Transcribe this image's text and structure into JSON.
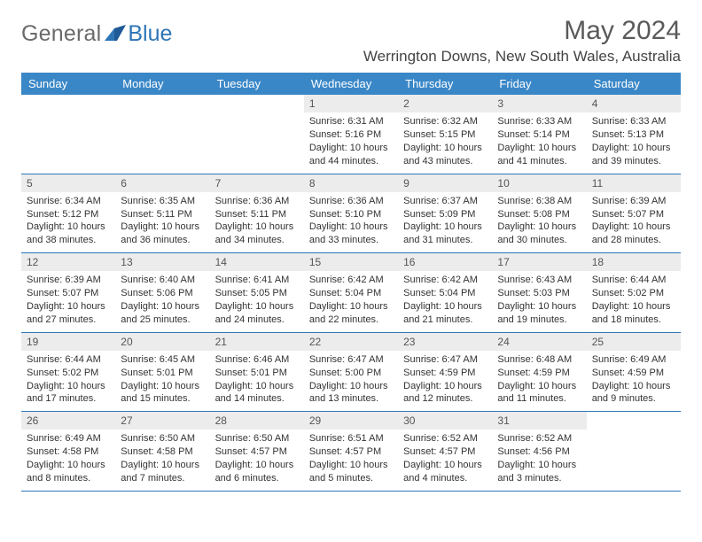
{
  "brand": {
    "text1": "General",
    "text2": "Blue"
  },
  "title": "May 2024",
  "location": "Werrington Downs, New South Wales, Australia",
  "colors": {
    "header_bg": "#3a87c7",
    "rule": "#2e75b6",
    "daynum_bg": "#ececec",
    "logo_gray": "#6a6a6a",
    "logo_blue": "#2e75b6"
  },
  "dow": [
    "Sunday",
    "Monday",
    "Tuesday",
    "Wednesday",
    "Thursday",
    "Friday",
    "Saturday"
  ],
  "weeks": [
    [
      {
        "n": "",
        "sr": "",
        "ss": "",
        "dl": ""
      },
      {
        "n": "",
        "sr": "",
        "ss": "",
        "dl": ""
      },
      {
        "n": "",
        "sr": "",
        "ss": "",
        "dl": ""
      },
      {
        "n": "1",
        "sr": "Sunrise: 6:31 AM",
        "ss": "Sunset: 5:16 PM",
        "dl": "Daylight: 10 hours and 44 minutes."
      },
      {
        "n": "2",
        "sr": "Sunrise: 6:32 AM",
        "ss": "Sunset: 5:15 PM",
        "dl": "Daylight: 10 hours and 43 minutes."
      },
      {
        "n": "3",
        "sr": "Sunrise: 6:33 AM",
        "ss": "Sunset: 5:14 PM",
        "dl": "Daylight: 10 hours and 41 minutes."
      },
      {
        "n": "4",
        "sr": "Sunrise: 6:33 AM",
        "ss": "Sunset: 5:13 PM",
        "dl": "Daylight: 10 hours and 39 minutes."
      }
    ],
    [
      {
        "n": "5",
        "sr": "Sunrise: 6:34 AM",
        "ss": "Sunset: 5:12 PM",
        "dl": "Daylight: 10 hours and 38 minutes."
      },
      {
        "n": "6",
        "sr": "Sunrise: 6:35 AM",
        "ss": "Sunset: 5:11 PM",
        "dl": "Daylight: 10 hours and 36 minutes."
      },
      {
        "n": "7",
        "sr": "Sunrise: 6:36 AM",
        "ss": "Sunset: 5:11 PM",
        "dl": "Daylight: 10 hours and 34 minutes."
      },
      {
        "n": "8",
        "sr": "Sunrise: 6:36 AM",
        "ss": "Sunset: 5:10 PM",
        "dl": "Daylight: 10 hours and 33 minutes."
      },
      {
        "n": "9",
        "sr": "Sunrise: 6:37 AM",
        "ss": "Sunset: 5:09 PM",
        "dl": "Daylight: 10 hours and 31 minutes."
      },
      {
        "n": "10",
        "sr": "Sunrise: 6:38 AM",
        "ss": "Sunset: 5:08 PM",
        "dl": "Daylight: 10 hours and 30 minutes."
      },
      {
        "n": "11",
        "sr": "Sunrise: 6:39 AM",
        "ss": "Sunset: 5:07 PM",
        "dl": "Daylight: 10 hours and 28 minutes."
      }
    ],
    [
      {
        "n": "12",
        "sr": "Sunrise: 6:39 AM",
        "ss": "Sunset: 5:07 PM",
        "dl": "Daylight: 10 hours and 27 minutes."
      },
      {
        "n": "13",
        "sr": "Sunrise: 6:40 AM",
        "ss": "Sunset: 5:06 PM",
        "dl": "Daylight: 10 hours and 25 minutes."
      },
      {
        "n": "14",
        "sr": "Sunrise: 6:41 AM",
        "ss": "Sunset: 5:05 PM",
        "dl": "Daylight: 10 hours and 24 minutes."
      },
      {
        "n": "15",
        "sr": "Sunrise: 6:42 AM",
        "ss": "Sunset: 5:04 PM",
        "dl": "Daylight: 10 hours and 22 minutes."
      },
      {
        "n": "16",
        "sr": "Sunrise: 6:42 AM",
        "ss": "Sunset: 5:04 PM",
        "dl": "Daylight: 10 hours and 21 minutes."
      },
      {
        "n": "17",
        "sr": "Sunrise: 6:43 AM",
        "ss": "Sunset: 5:03 PM",
        "dl": "Daylight: 10 hours and 19 minutes."
      },
      {
        "n": "18",
        "sr": "Sunrise: 6:44 AM",
        "ss": "Sunset: 5:02 PM",
        "dl": "Daylight: 10 hours and 18 minutes."
      }
    ],
    [
      {
        "n": "19",
        "sr": "Sunrise: 6:44 AM",
        "ss": "Sunset: 5:02 PM",
        "dl": "Daylight: 10 hours and 17 minutes."
      },
      {
        "n": "20",
        "sr": "Sunrise: 6:45 AM",
        "ss": "Sunset: 5:01 PM",
        "dl": "Daylight: 10 hours and 15 minutes."
      },
      {
        "n": "21",
        "sr": "Sunrise: 6:46 AM",
        "ss": "Sunset: 5:01 PM",
        "dl": "Daylight: 10 hours and 14 minutes."
      },
      {
        "n": "22",
        "sr": "Sunrise: 6:47 AM",
        "ss": "Sunset: 5:00 PM",
        "dl": "Daylight: 10 hours and 13 minutes."
      },
      {
        "n": "23",
        "sr": "Sunrise: 6:47 AM",
        "ss": "Sunset: 4:59 PM",
        "dl": "Daylight: 10 hours and 12 minutes."
      },
      {
        "n": "24",
        "sr": "Sunrise: 6:48 AM",
        "ss": "Sunset: 4:59 PM",
        "dl": "Daylight: 10 hours and 11 minutes."
      },
      {
        "n": "25",
        "sr": "Sunrise: 6:49 AM",
        "ss": "Sunset: 4:59 PM",
        "dl": "Daylight: 10 hours and 9 minutes."
      }
    ],
    [
      {
        "n": "26",
        "sr": "Sunrise: 6:49 AM",
        "ss": "Sunset: 4:58 PM",
        "dl": "Daylight: 10 hours and 8 minutes."
      },
      {
        "n": "27",
        "sr": "Sunrise: 6:50 AM",
        "ss": "Sunset: 4:58 PM",
        "dl": "Daylight: 10 hours and 7 minutes."
      },
      {
        "n": "28",
        "sr": "Sunrise: 6:50 AM",
        "ss": "Sunset: 4:57 PM",
        "dl": "Daylight: 10 hours and 6 minutes."
      },
      {
        "n": "29",
        "sr": "Sunrise: 6:51 AM",
        "ss": "Sunset: 4:57 PM",
        "dl": "Daylight: 10 hours and 5 minutes."
      },
      {
        "n": "30",
        "sr": "Sunrise: 6:52 AM",
        "ss": "Sunset: 4:57 PM",
        "dl": "Daylight: 10 hours and 4 minutes."
      },
      {
        "n": "31",
        "sr": "Sunrise: 6:52 AM",
        "ss": "Sunset: 4:56 PM",
        "dl": "Daylight: 10 hours and 3 minutes."
      },
      {
        "n": "",
        "sr": "",
        "ss": "",
        "dl": ""
      }
    ]
  ]
}
